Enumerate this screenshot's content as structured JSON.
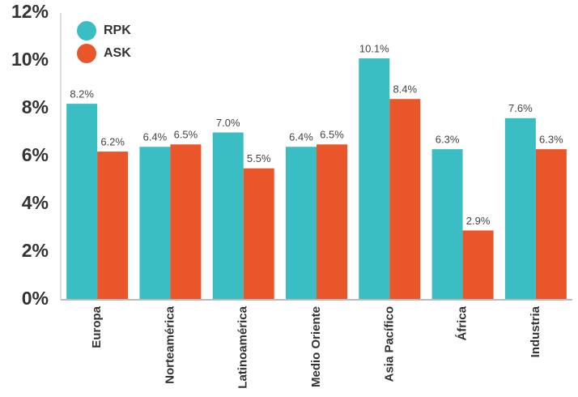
{
  "chart_data": {
    "type": "bar",
    "categories": [
      "Europa",
      "Norteamérica",
      "Latinoamérica",
      "Medio Oriente",
      "Asia Pacífico",
      "África",
      "Industria"
    ],
    "series": [
      {
        "name": "RPK",
        "color": "#3bbdc4",
        "values": [
          8.2,
          6.4,
          7.0,
          6.4,
          10.1,
          6.3,
          7.6
        ],
        "value_labels": [
          "8.2%",
          "6.4%",
          "7.0%",
          "6.4%",
          "10.1%",
          "6.3%",
          "7.6%"
        ]
      },
      {
        "name": "ASK",
        "color": "#e8562a",
        "values": [
          6.2,
          6.5,
          5.5,
          6.5,
          8.4,
          2.9,
          6.3
        ],
        "value_labels": [
          "6.2%",
          "6.5%",
          "5.5%",
          "6.5%",
          "8.4%",
          "2.9%",
          "6.3%"
        ]
      }
    ],
    "ylim": [
      0,
      12
    ],
    "yticks": [
      {
        "value": 0,
        "label": "0%"
      },
      {
        "value": 2,
        "label": "2%"
      },
      {
        "value": 4,
        "label": "4%"
      },
      {
        "value": 6,
        "label": "6%"
      },
      {
        "value": 8,
        "label": "8%"
      },
      {
        "value": 10,
        "label": "10%"
      },
      {
        "value": 12,
        "label": "12%"
      }
    ],
    "grid": false,
    "legend": "upper left"
  }
}
